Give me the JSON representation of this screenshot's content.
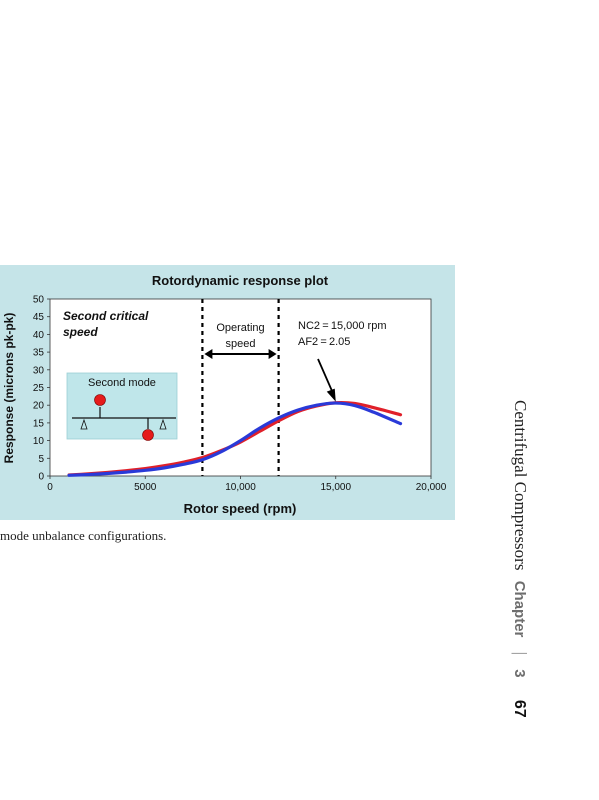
{
  "chart_data": {
    "type": "line",
    "title": "Rotordynamic response plot",
    "xlabel": "Rotor speed (rpm)",
    "ylabel": "Response (microns pk-pk)",
    "xlim": [
      0,
      20000
    ],
    "ylim": [
      0,
      50
    ],
    "x_ticks": [
      0,
      5000,
      10000,
      15000,
      20000
    ],
    "x_tick_labels": [
      "0",
      "5000",
      "10,000",
      "15,000",
      "20,000"
    ],
    "y_ticks": [
      0,
      5,
      10,
      15,
      20,
      25,
      30,
      35,
      40,
      45,
      50
    ],
    "grid": false,
    "series_colors": [
      "#e0202a",
      "#2a3ad8"
    ],
    "series": [
      {
        "x": [
          1000,
          2000,
          3000,
          4000,
          5000,
          6000,
          7000,
          8000,
          9000,
          10000,
          11000,
          12000,
          13000,
          14000,
          15000,
          16000,
          17000,
          18400
        ],
        "values": [
          0.3,
          0.6,
          1.0,
          1.5,
          2.1,
          2.9,
          3.9,
          5.2,
          7.2,
          9.6,
          12.6,
          15.6,
          18.2,
          19.8,
          20.7,
          20.5,
          19.3,
          17.3
        ]
      },
      {
        "x": [
          1000,
          2000,
          3000,
          4000,
          5000,
          6000,
          7000,
          8000,
          9000,
          10000,
          11000,
          12000,
          13000,
          14000,
          15000,
          16000,
          17000,
          18400
        ],
        "values": [
          0.2,
          0.4,
          0.7,
          1.1,
          1.6,
          2.3,
          3.3,
          4.6,
          6.9,
          10.0,
          13.5,
          16.4,
          18.6,
          20.0,
          20.6,
          19.9,
          18.0,
          14.8
        ]
      }
    ],
    "operating_speed_bounds": [
      8000,
      12000
    ],
    "arrow_target": [
      15000,
      21.0
    ],
    "annotations": {
      "critical_label": "Second critical speed",
      "operating_label": "Operating speed",
      "nc2": "NC2 = 15,000 rpm",
      "af2": "AF2 = 2.05",
      "inset_title": "Second mode"
    }
  },
  "colors": {
    "panel": "#c5e4e8",
    "inset": "#bfe6ea",
    "unbalance_mass": "#e51b1b"
  },
  "caption": "mode unbalance configurations.",
  "page_header": {
    "title": "Centrifugal Compressors",
    "chapter": "Chapter",
    "chapter_number": "3",
    "page_number": "67"
  }
}
